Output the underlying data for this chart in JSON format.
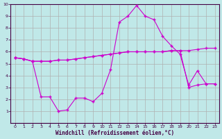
{
  "xlabel": "Windchill (Refroidissement éolien,°C)",
  "xlim": [
    -0.5,
    23.5
  ],
  "ylim": [
    0,
    10
  ],
  "xticks": [
    0,
    1,
    2,
    3,
    4,
    5,
    6,
    7,
    8,
    9,
    10,
    11,
    12,
    13,
    14,
    15,
    16,
    17,
    18,
    19,
    20,
    21,
    22,
    23
  ],
  "yticks": [
    1,
    2,
    3,
    4,
    5,
    6,
    7,
    8,
    9,
    10
  ],
  "background_color": "#c0e8e8",
  "grid_color": "#b0b0b0",
  "line_color": "#cc00cc",
  "line1_x": [
    0,
    1,
    2,
    3,
    4,
    5,
    6,
    7,
    8,
    9,
    10,
    11,
    12,
    13,
    14,
    15,
    16,
    17,
    18,
    19,
    20,
    21,
    22,
    23
  ],
  "line1_y": [
    5.5,
    5.4,
    5.2,
    5.2,
    5.2,
    5.3,
    5.3,
    5.4,
    5.5,
    5.6,
    5.7,
    5.8,
    5.9,
    6.0,
    6.0,
    6.0,
    6.0,
    6.0,
    6.1,
    6.1,
    6.1,
    6.2,
    6.3,
    6.3
  ],
  "line2_x": [
    0,
    1,
    2,
    3,
    4,
    5,
    6,
    7,
    8,
    9,
    10,
    11,
    12,
    13,
    14,
    15,
    16,
    17,
    18,
    19,
    20,
    21,
    22,
    23
  ],
  "line2_y": [
    5.5,
    5.4,
    5.2,
    2.2,
    2.2,
    1.0,
    1.1,
    2.1,
    2.1,
    1.8,
    2.5,
    4.5,
    8.5,
    9.0,
    9.9,
    9.0,
    8.7,
    7.3,
    6.5,
    5.8,
    3.2,
    4.4,
    3.3,
    3.3
  ],
  "line3_x": [
    0,
    1,
    2,
    3,
    4,
    5,
    6,
    7,
    8,
    9,
    10,
    11,
    12,
    13,
    14,
    15,
    16,
    17,
    18,
    19,
    20,
    21,
    22,
    23
  ],
  "line3_y": [
    5.5,
    5.4,
    5.2,
    5.2,
    5.2,
    5.3,
    5.3,
    5.4,
    5.5,
    5.6,
    5.7,
    5.8,
    5.9,
    6.0,
    6.0,
    6.0,
    6.0,
    6.0,
    6.1,
    6.1,
    3.0,
    3.2,
    3.3,
    3.3
  ]
}
